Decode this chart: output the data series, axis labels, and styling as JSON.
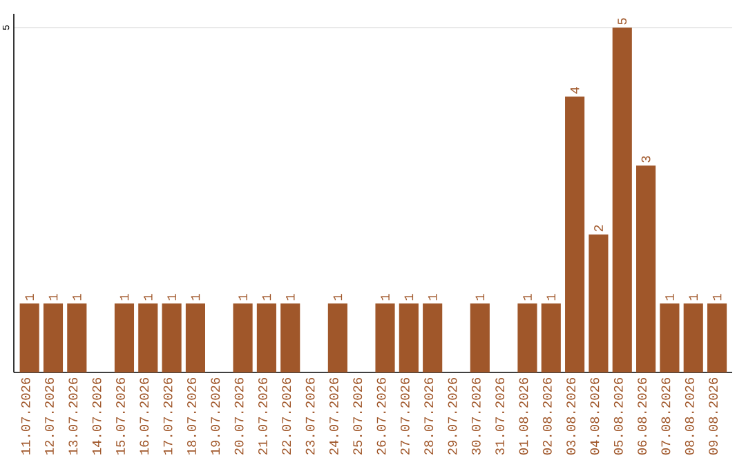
{
  "chart_data": {
    "type": "bar",
    "categories": [
      "11.07.2026",
      "12.07.2026",
      "13.07.2026",
      "14.07.2026",
      "15.07.2026",
      "16.07.2026",
      "17.07.2026",
      "18.07.2026",
      "19.07.2026",
      "20.07.2026",
      "21.07.2026",
      "22.07.2026",
      "23.07.2026",
      "24.07.2026",
      "25.07.2026",
      "26.07.2026",
      "27.07.2026",
      "28.07.2026",
      "29.07.2026",
      "30.07.2026",
      "31.07.2026",
      "01.08.2026",
      "02.08.2026",
      "03.08.2026",
      "04.08.2026",
      "05.08.2026",
      "06.08.2026",
      "07.08.2026",
      "08.08.2026",
      "09.08.2026"
    ],
    "values": [
      1,
      1,
      1,
      null,
      1,
      1,
      1,
      1,
      null,
      1,
      1,
      1,
      null,
      1,
      null,
      1,
      1,
      1,
      null,
      1,
      null,
      1,
      1,
      4,
      2,
      5,
      3,
      1,
      1,
      1
    ],
    "color": "#a0572a",
    "ylim": [
      0,
      5.2
    ],
    "yticks": [
      5
    ],
    "grid": "y",
    "data_labels": true
  }
}
